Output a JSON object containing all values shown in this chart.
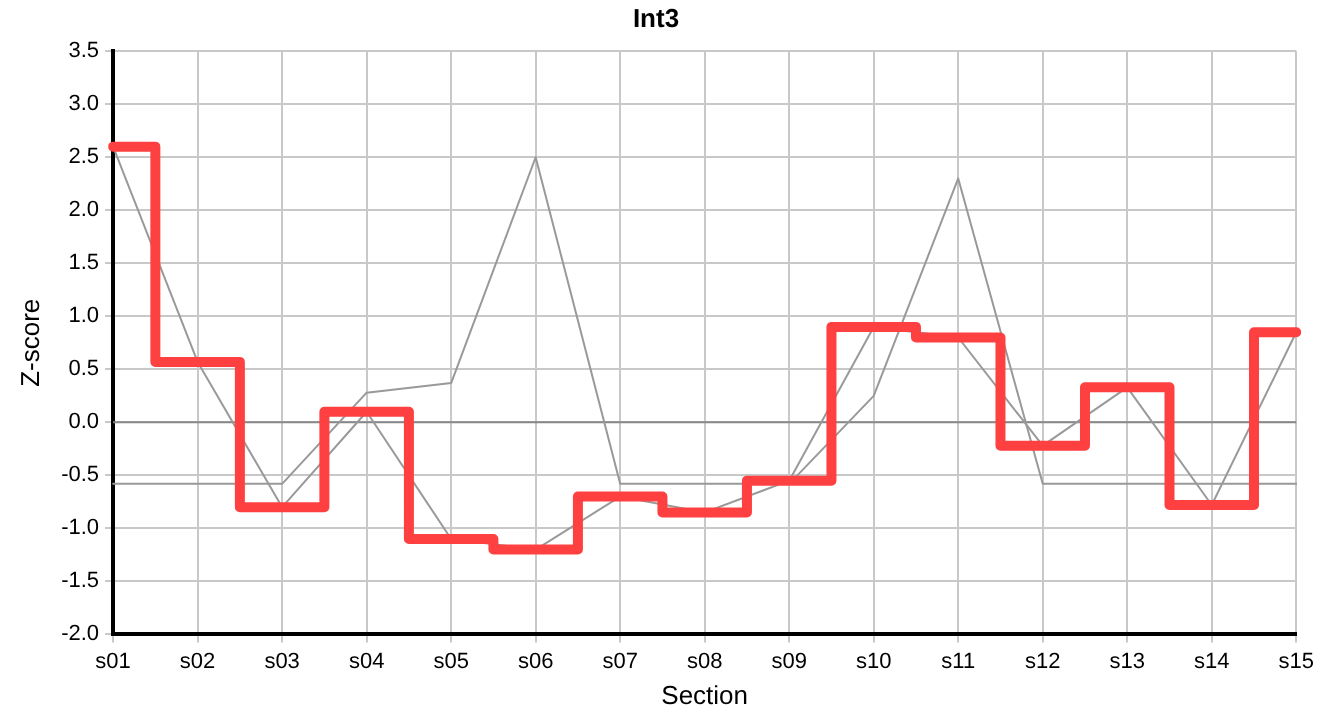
{
  "chart_data": {
    "type": "line",
    "title": "Int3",
    "xlabel": "Section",
    "ylabel": "Z-score",
    "categories": [
      "s01",
      "s02",
      "s03",
      "s04",
      "s05",
      "s06",
      "s07",
      "s08",
      "s09",
      "s10",
      "s11",
      "s12",
      "s13",
      "s14",
      "s15"
    ],
    "series": [
      {
        "type": "step",
        "color": "#ff4040",
        "values": [
          2.6,
          0.57,
          -0.8,
          0.1,
          -1.1,
          -1.2,
          -0.7,
          -0.85,
          -0.55,
          0.9,
          0.8,
          -0.22,
          0.33,
          -0.78,
          0.85
        ]
      },
      {
        "type": "line",
        "color": "#999999",
        "values": [
          2.6,
          0.57,
          -0.8,
          0.1,
          -1.1,
          -1.2,
          -0.7,
          -0.85,
          -0.55,
          0.9,
          0.8,
          -0.22,
          0.33,
          -0.78,
          0.85
        ]
      },
      {
        "type": "line",
        "color": "#999999",
        "values": [
          -0.58,
          -0.58,
          -0.58,
          0.28,
          0.37,
          2.5,
          -0.58,
          -0.58,
          -0.58,
          0.25,
          2.3,
          -0.58,
          -0.58,
          -0.58,
          -0.58
        ]
      }
    ],
    "ylim": [
      -2,
      3.5
    ],
    "yticks": [
      {
        "value": -2,
        "label": "-2.0"
      },
      {
        "value": -1.5,
        "label": "-1.5"
      },
      {
        "value": -1,
        "label": "-1.0"
      },
      {
        "value": -0.5,
        "label": "-0.5"
      },
      {
        "value": 0,
        "label": "0.0"
      },
      {
        "value": 0.5,
        "label": "0.5"
      },
      {
        "value": 1,
        "label": "1.0"
      },
      {
        "value": 1.5,
        "label": "1.5"
      },
      {
        "value": 2,
        "label": "2.0"
      },
      {
        "value": 2.5,
        "label": "2.5"
      },
      {
        "value": 3,
        "label": "3.0"
      },
      {
        "value": 3.5,
        "label": "3.5"
      }
    ],
    "ref_lines": [
      {
        "axis": "y",
        "value": 0,
        "color": "#888888"
      }
    ],
    "grid": true,
    "legend": false,
    "marker": "none",
    "line_style": "solid"
  }
}
